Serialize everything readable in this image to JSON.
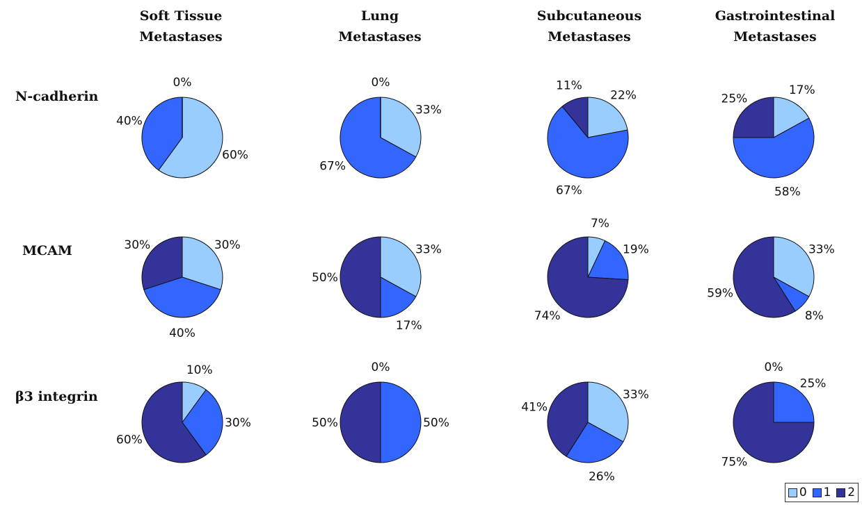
{
  "chart_data": {
    "type": "pie",
    "columns": [
      "Soft Tissue Metastases",
      "Lung Metastases",
      "Subcutaneous Metastases",
      "Gastrointestinal Metastases"
    ],
    "rows": [
      "N-cadherin",
      "MCAM",
      "β3 integrin"
    ],
    "categories": [
      "0",
      "1",
      "2"
    ],
    "colors": [
      "#99ccff",
      "#3366ff",
      "#333399"
    ],
    "legend_position": "bottom-right",
    "grid": [
      [
        {
          "values": [
            60,
            40,
            0
          ],
          "labels": [
            "60%",
            "40%",
            "0%"
          ]
        },
        {
          "values": [
            33,
            67,
            0
          ],
          "labels": [
            "33%",
            "67%",
            "0%"
          ]
        },
        {
          "values": [
            22,
            67,
            11
          ],
          "labels": [
            "22%",
            "67%",
            "11%"
          ]
        },
        {
          "values": [
            17,
            58,
            25
          ],
          "labels": [
            "17%",
            "58%",
            "25%"
          ]
        }
      ],
      [
        {
          "values": [
            30,
            40,
            30
          ],
          "labels": [
            "30%",
            "40%",
            "30%"
          ]
        },
        {
          "values": [
            33,
            17,
            50
          ],
          "labels": [
            "33%",
            "17%",
            "50%"
          ]
        },
        {
          "values": [
            7,
            19,
            74
          ],
          "labels": [
            "7%",
            "19%",
            "74%"
          ]
        },
        {
          "values": [
            33,
            8,
            59
          ],
          "labels": [
            "33%",
            "8%",
            "59%"
          ]
        }
      ],
      [
        {
          "values": [
            10,
            30,
            60
          ],
          "labels": [
            "10%",
            "30%",
            "60%"
          ]
        },
        {
          "values": [
            0,
            50,
            50
          ],
          "labels": [
            "0%",
            "50%",
            "50%"
          ]
        },
        {
          "values": [
            33,
            26,
            41
          ],
          "labels": [
            "33%",
            "26%",
            "41%"
          ]
        },
        {
          "values": [
            0,
            25,
            75
          ],
          "labels": [
            "0%",
            "25%",
            "75%"
          ]
        }
      ]
    ]
  },
  "column_titles": [
    {
      "line1": "Soft Tissue",
      "line2": "Metastases"
    },
    {
      "line1": "Lung",
      "line2": "Metastases"
    },
    {
      "line1": "Subcutaneous",
      "line2": "Metastases"
    },
    {
      "line1": "Gastrointestinal",
      "line2": "Metastases"
    }
  ],
  "row_titles": [
    "N-cadherin",
    "MCAM",
    "β3 integrin"
  ],
  "legend": {
    "items": [
      {
        "label": "0",
        "color": "#99ccff"
      },
      {
        "label": "1",
        "color": "#3366ff"
      },
      {
        "label": "2",
        "color": "#333399"
      }
    ]
  }
}
